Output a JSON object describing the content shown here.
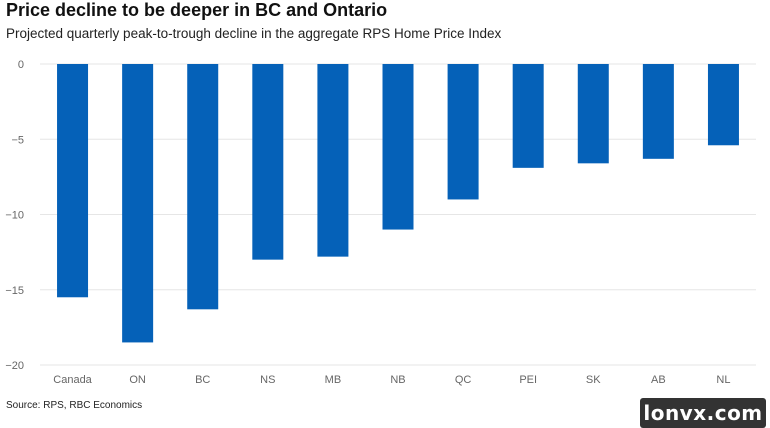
{
  "header": {
    "title": "Price decline to be deeper in BC and Ontario",
    "subtitle": "Projected quarterly peak-to-trough decline in the aggregate RPS Home Price Index"
  },
  "footer": {
    "source": "Source: RPS, RBC Economics"
  },
  "watermark": {
    "text": "lonvx.com"
  },
  "colors": {
    "bar": "#0561b8",
    "grid": "#e6e6e6",
    "axis_text": "#666666"
  },
  "chart_data": {
    "type": "bar",
    "categories": [
      "Canada",
      "ON",
      "BC",
      "NS",
      "MB",
      "NB",
      "QC",
      "PEI",
      "SK",
      "AB",
      "NL"
    ],
    "values": [
      -15.5,
      -18.5,
      -16.3,
      -13.0,
      -12.8,
      -11.0,
      -9.0,
      -6.9,
      -6.6,
      -6.3,
      -5.4
    ],
    "ylim": [
      -20,
      0
    ],
    "yticks": [
      0,
      -5,
      -10,
      -15,
      -20
    ],
    "ytick_labels": [
      "0",
      "−5",
      "−10",
      "−15",
      "−20"
    ],
    "grid": true,
    "xlabel": "",
    "ylabel": ""
  }
}
